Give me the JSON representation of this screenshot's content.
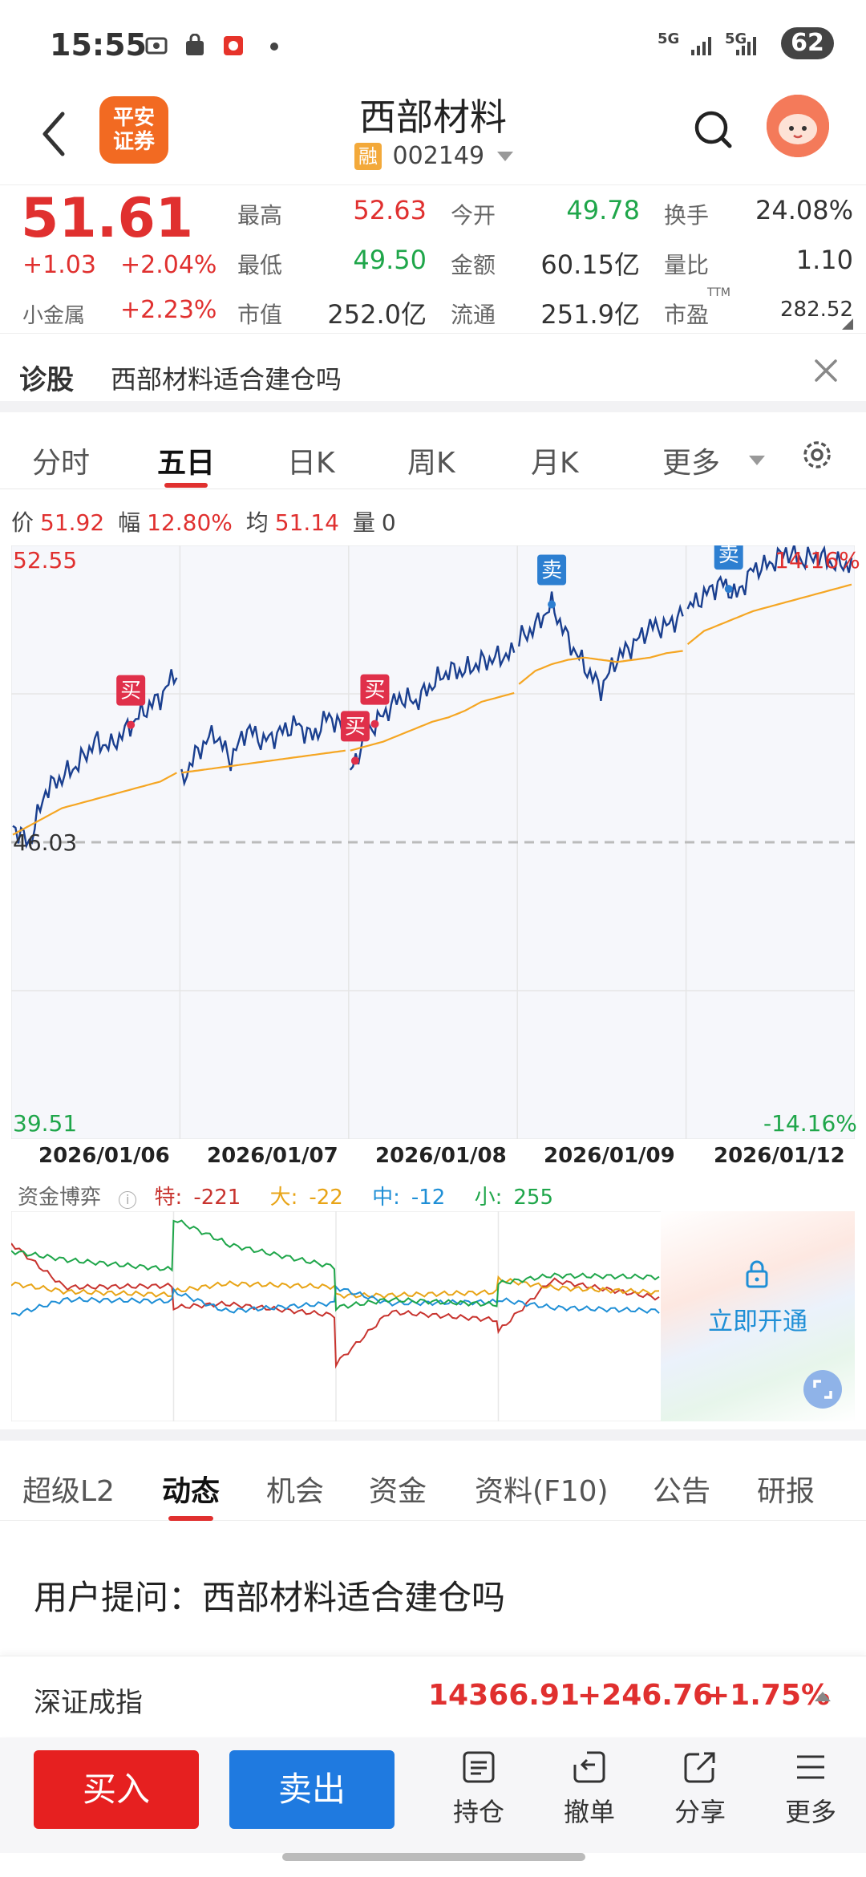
{
  "status_bar": {
    "time": "15:55",
    "network1": "5G",
    "network2": "5G",
    "battery": "62"
  },
  "header": {
    "broker_logo_line1": "平安",
    "broker_logo_line2": "证券",
    "stock_name": "西部材料",
    "badge": "融",
    "stock_code": "002149"
  },
  "quote": {
    "price": "51.61",
    "change": "+1.03",
    "change_pct": "+2.04%",
    "sector_name": "小金属",
    "sector_pct": "+2.23%",
    "fields": [
      {
        "label": "最高",
        "value": "52.63"
      },
      {
        "label": "今开",
        "value": "49.78"
      },
      {
        "label": "换手",
        "value": "24.08%"
      },
      {
        "label": "最低",
        "value": "49.50"
      },
      {
        "label": "金额",
        "value": "60.15亿"
      },
      {
        "label": "量比",
        "value": "1.10"
      },
      {
        "label": "市值",
        "value": "252.0亿"
      },
      {
        "label": "流通",
        "value": "251.9亿"
      },
      {
        "label": "市盈",
        "value": "282.52"
      }
    ],
    "pe_sup": "TTM"
  },
  "diagnose": {
    "label": "诊股",
    "text": "西部材料适合建仓吗"
  },
  "chart_tabs": [
    "分时",
    "五日",
    "日K",
    "周K",
    "月K",
    "更多"
  ],
  "chart_info": {
    "price_label": "价",
    "price": "51.92",
    "range_label": "幅",
    "range": "12.80%",
    "avg_label": "均",
    "avg": "51.14",
    "vol_label": "量",
    "vol": "0"
  },
  "chart_data": {
    "type": "line",
    "categories": [
      "2026/01/06",
      "2026/01/07",
      "2026/01/08",
      "2026/01/09",
      "2026/01/12"
    ],
    "y_top_label": "52.55",
    "y_mid_label": "46.03",
    "y_bottom_label": "39.51",
    "pct_top": "14.16%",
    "pct_bottom": "-14.16%",
    "ylim": [
      39.51,
      52.55
    ],
    "series": [
      {
        "values": [
          [
            46.4,
            46.0,
            47.2,
            47.5,
            47.8,
            48.3,
            48.2,
            48.6,
            49.0,
            49.3,
            49.9
          ],
          [
            47.4,
            48.1,
            48.5,
            47.9,
            48.6,
            48.3,
            48.5,
            48.7,
            48.4,
            48.9,
            48.5
          ],
          [
            47.6,
            48.5,
            48.9,
            49.3,
            49.2,
            49.6,
            49.9,
            49.9,
            50.1,
            50.2,
            50.3
          ],
          [
            50.6,
            50.9,
            51.4,
            50.6,
            50.0,
            49.5,
            50.2,
            50.5,
            50.9,
            50.9,
            51.2
          ],
          [
            51.3,
            51.6,
            51.9,
            51.6,
            52.2,
            52.3,
            52.6,
            52.4,
            52.5,
            52.3,
            52.3
          ]
        ]
      },
      {
        "values": [
          [
            46.2,
            46.4,
            46.6,
            46.8,
            46.9,
            47.0,
            47.1,
            47.2,
            47.3,
            47.4,
            47.6
          ],
          [
            47.6,
            47.65,
            47.7,
            47.75,
            47.8,
            47.85,
            47.9,
            47.95,
            48.0,
            48.05,
            48.1
          ],
          [
            48.1,
            48.2,
            48.3,
            48.45,
            48.6,
            48.75,
            48.85,
            49.0,
            49.2,
            49.3,
            49.4
          ],
          [
            49.6,
            49.9,
            50.05,
            50.15,
            50.2,
            50.15,
            50.1,
            50.15,
            50.2,
            50.3,
            50.35
          ],
          [
            50.5,
            50.8,
            50.95,
            51.1,
            51.25,
            51.35,
            51.45,
            51.55,
            51.65,
            51.75,
            51.85
          ]
        ]
      }
    ],
    "signals": [
      {
        "type": "买",
        "day": 0,
        "pos": 0.72
      },
      {
        "type": "买",
        "day": 2,
        "pos": 0.03
      },
      {
        "type": "买",
        "day": 2,
        "pos": 0.15
      },
      {
        "type": "卖",
        "day": 3,
        "pos": 0.2
      },
      {
        "type": "卖",
        "day": 4,
        "pos": 0.25
      }
    ],
    "colors": {
      "price": "#1a3f8f",
      "avg": "#f5a623",
      "grid": "#e6e6e6",
      "dashed": "#bbbbbb",
      "buy": "#e0304a",
      "sell": "#2d7fd1",
      "chart_bg": "#f6f7fb"
    }
  },
  "capital_flow": {
    "title": "资金博弈",
    "items": [
      {
        "label": "特:",
        "value": "-221",
        "color": "#c8342f"
      },
      {
        "label": "大:",
        "value": "-22",
        "color": "#e8a416"
      },
      {
        "label": "中:",
        "value": "-12",
        "color": "#1f8fd6"
      },
      {
        "label": "小:",
        "value": "255",
        "color": "#1fa64a"
      }
    ],
    "unlock_text": "立即开通"
  },
  "bottom_tabs": [
    "超级L2",
    "动态",
    "机会",
    "资金",
    "资料(F10)",
    "公告",
    "研报"
  ],
  "feed": {
    "question": "用户提问：西部材料适合建仓吗"
  },
  "index_bar": {
    "name": "深证成指",
    "value": "14366.91",
    "change": "+246.76",
    "pct": "+1.75%"
  },
  "actions": {
    "buy": "买入",
    "sell": "卖出",
    "items": [
      "持仓",
      "撤单",
      "分享",
      "更多"
    ]
  }
}
